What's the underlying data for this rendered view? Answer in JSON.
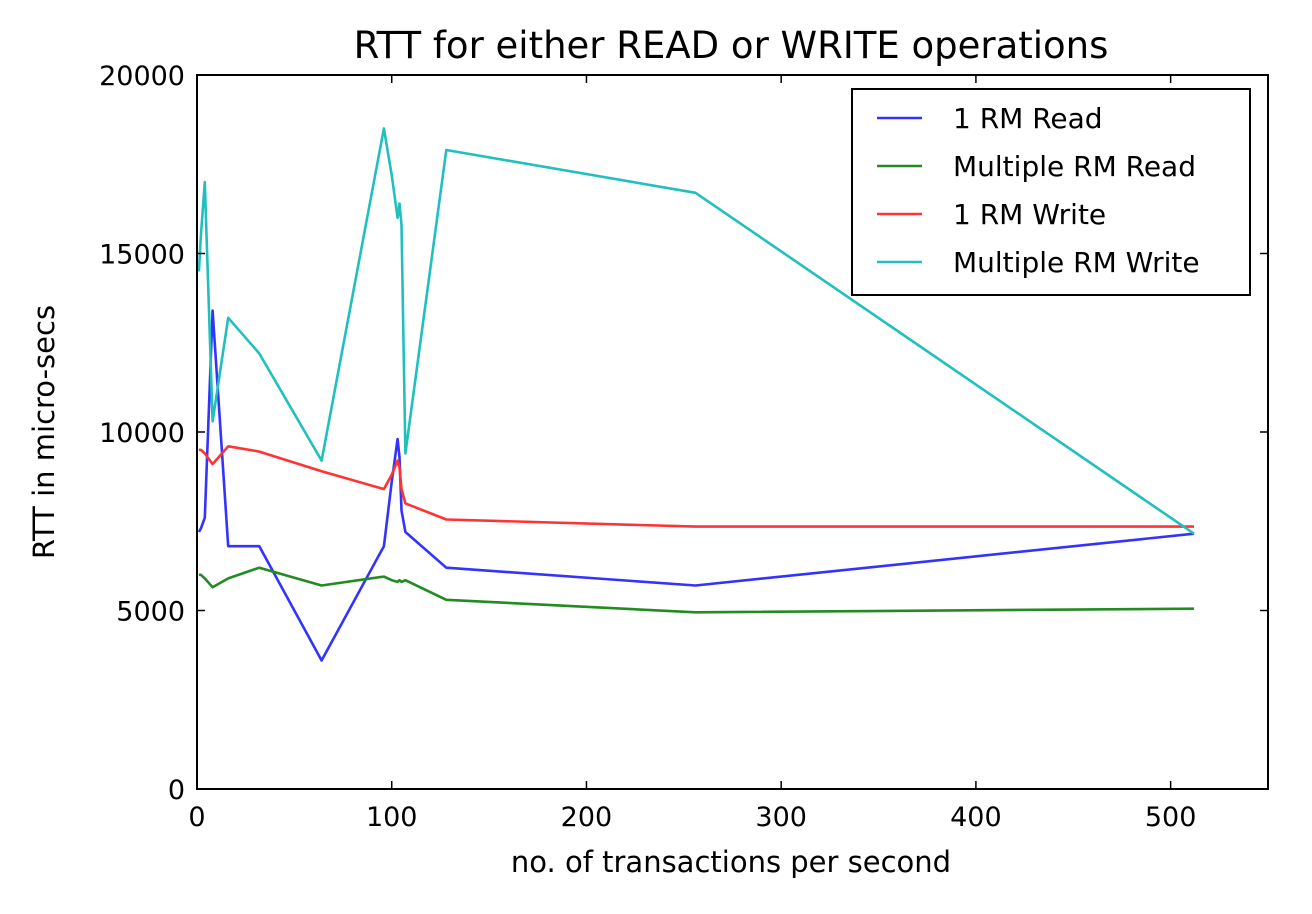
{
  "chart_data": {
    "type": "line",
    "title": "RTT for either READ or WRITE operations",
    "xlabel": "no. of transactions per second",
    "ylabel": "RTT in micro-secs",
    "xlim": [
      0,
      550
    ],
    "ylim": [
      0,
      20000
    ],
    "xticks": [
      0,
      100,
      200,
      300,
      400,
      500
    ],
    "yticks": [
      0,
      5000,
      10000,
      15000,
      20000
    ],
    "grid": false,
    "legend_position": "top-right",
    "series": [
      {
        "name": "1 RM Read",
        "color": "#3333ff",
        "x": [
          1,
          2,
          4,
          8,
          16,
          32,
          64,
          96,
          100,
          103,
          104,
          105,
          107,
          128,
          256,
          512
        ],
        "y": [
          7200,
          7300,
          7600,
          13400,
          6800,
          6800,
          3600,
          6800,
          8600,
          9800,
          9300,
          7800,
          7200,
          6200,
          5700,
          7150
        ]
      },
      {
        "name": "Multiple RM Read",
        "color": "#228b22",
        "x": [
          1,
          2,
          4,
          8,
          16,
          32,
          64,
          96,
          100,
          103,
          104,
          105,
          107,
          128,
          256,
          512
        ],
        "y": [
          6000,
          6000,
          5900,
          5650,
          5900,
          6200,
          5700,
          5950,
          5850,
          5800,
          5850,
          5800,
          5850,
          5300,
          4950,
          5050
        ]
      },
      {
        "name": "1 RM Write",
        "color": "#ff3333",
        "x": [
          1,
          2,
          4,
          8,
          16,
          32,
          64,
          96,
          100,
          103,
          104,
          105,
          107,
          128,
          256,
          512
        ],
        "y": [
          9500,
          9500,
          9400,
          9100,
          9600,
          9450,
          8900,
          8400,
          8800,
          9200,
          9000,
          8400,
          8000,
          7550,
          7350,
          7350
        ]
      },
      {
        "name": "Multiple RM Write",
        "color": "#22bfbf",
        "x": [
          1,
          2,
          4,
          8,
          16,
          32,
          64,
          96,
          100,
          103,
          104,
          105,
          107,
          128,
          256,
          512
        ],
        "y": [
          14500,
          15500,
          17000,
          10300,
          13200,
          12200,
          9200,
          18500,
          17200,
          16000,
          16400,
          15800,
          9400,
          17900,
          16700,
          7150
        ]
      }
    ]
  }
}
